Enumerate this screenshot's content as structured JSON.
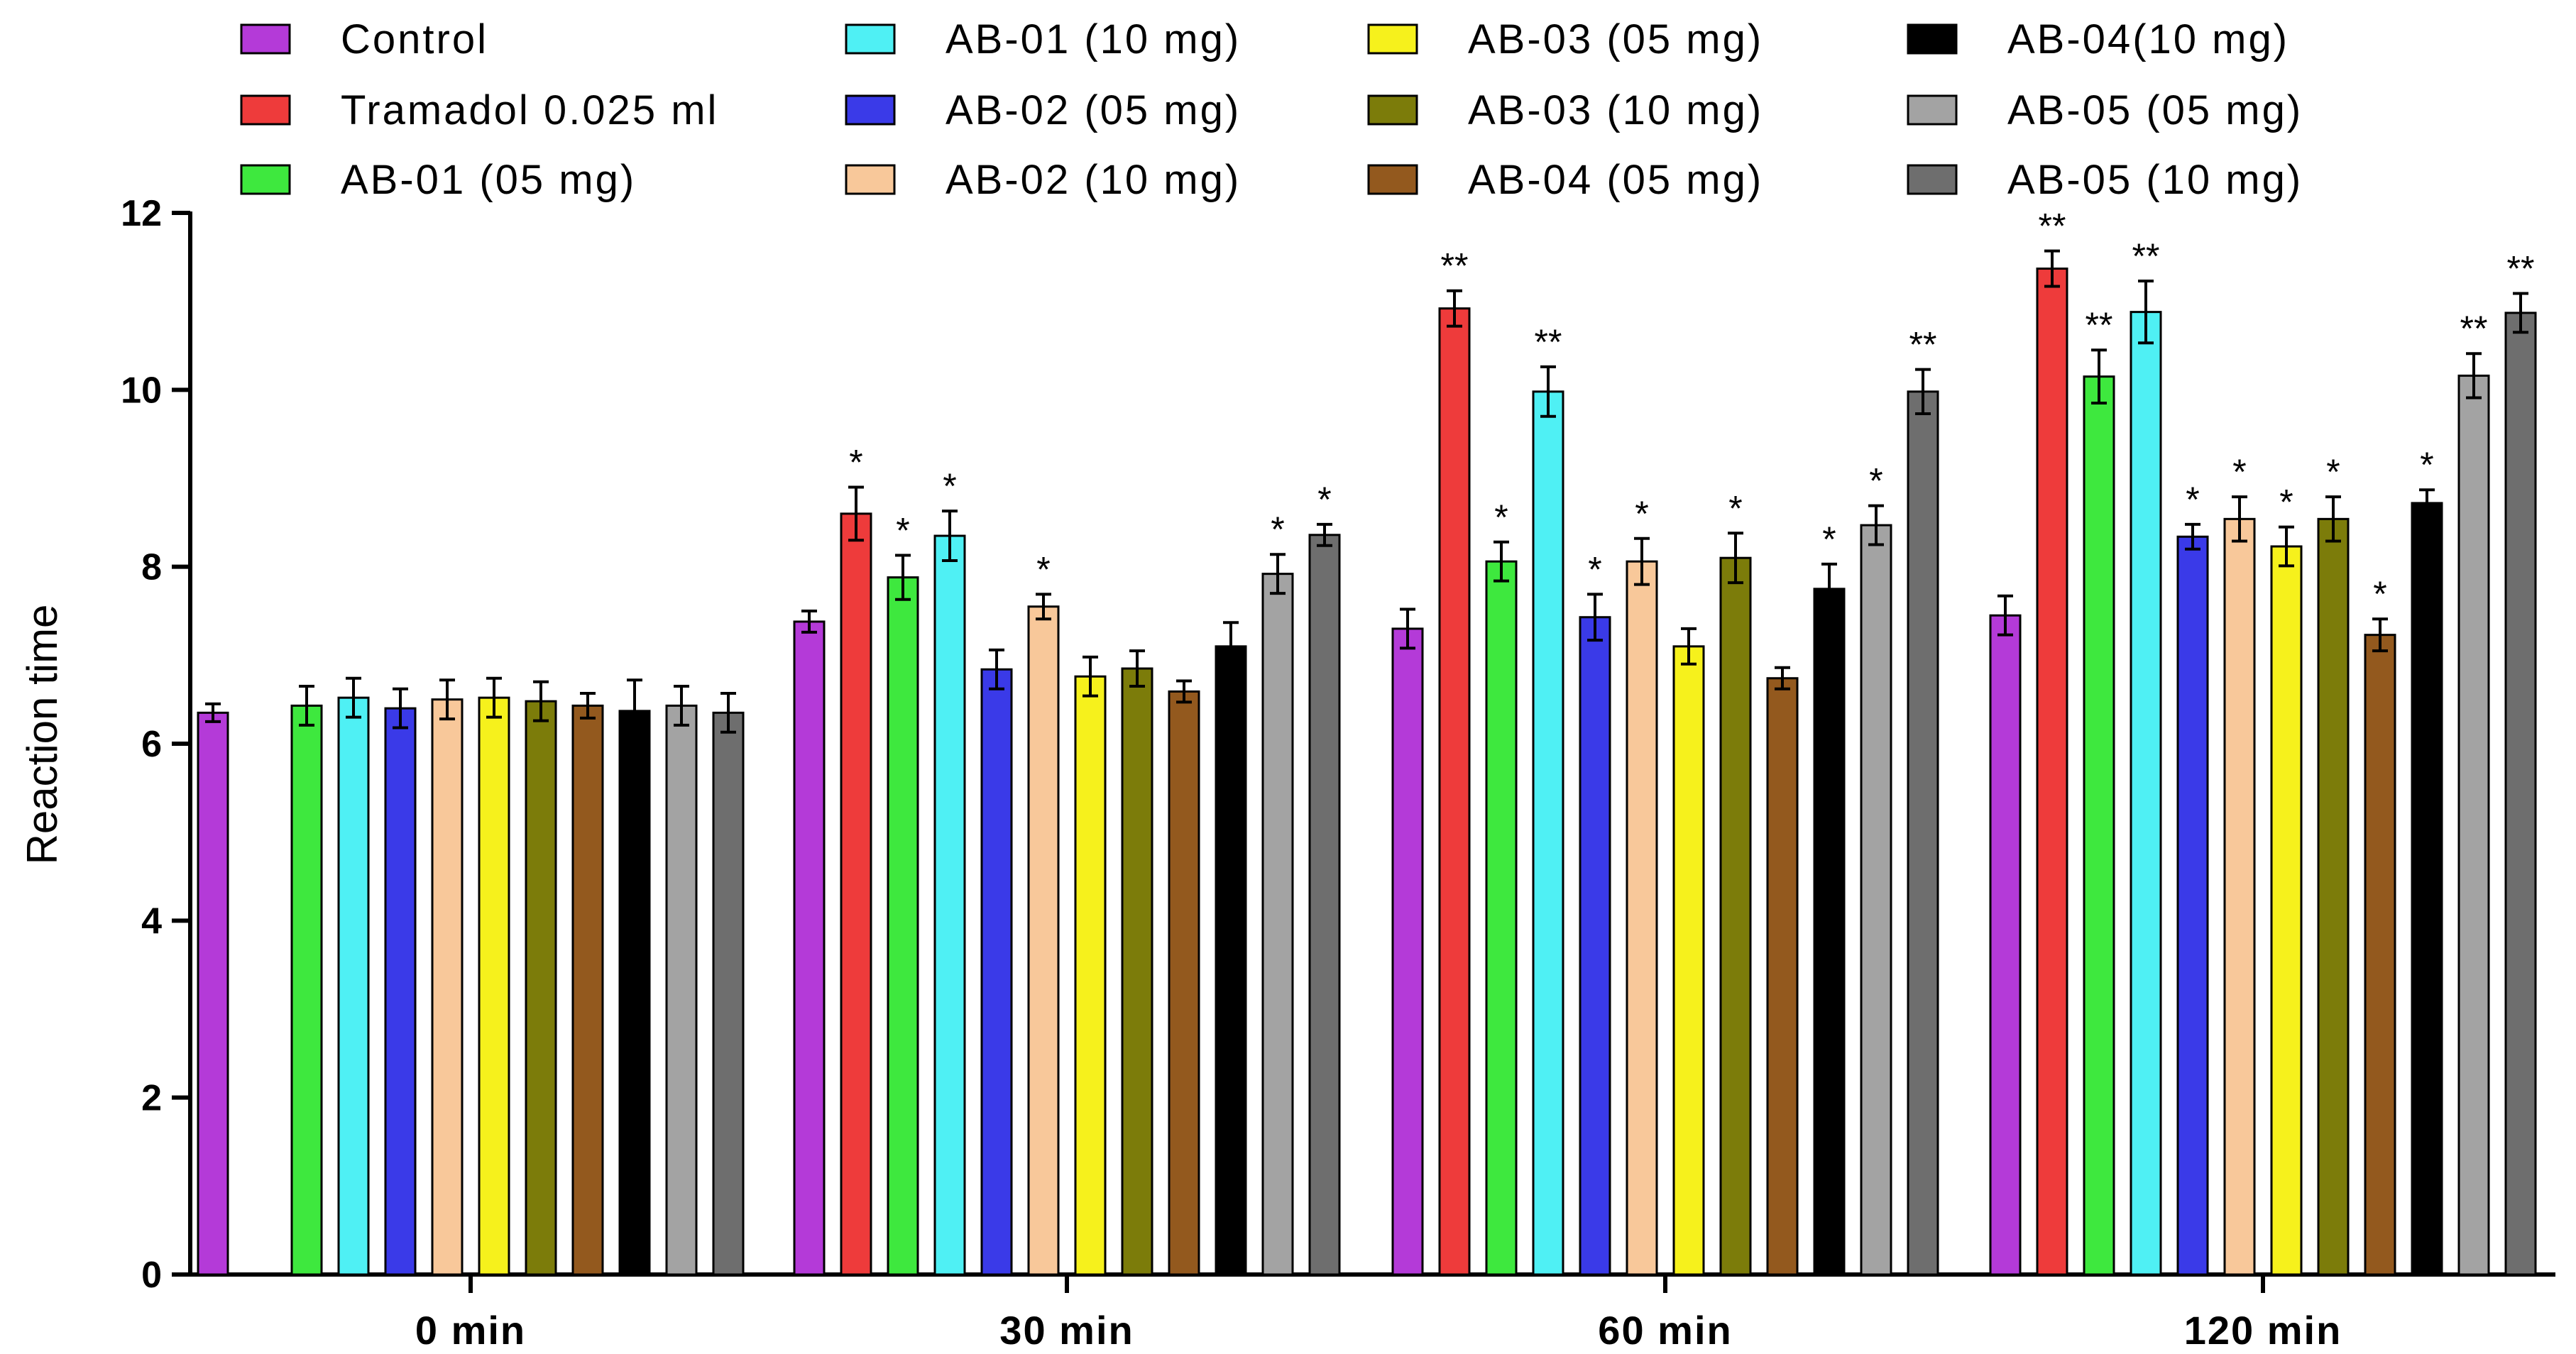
{
  "chart_data": {
    "type": "bar",
    "title": "",
    "xlabel": "",
    "ylabel": "Reaction time",
    "ylim": [
      0,
      12
    ],
    "yticks": [
      "0",
      "2",
      "4",
      "6",
      "8",
      "10",
      "12"
    ],
    "categories": [
      "0 min",
      "30 min",
      "60 min",
      "120 min"
    ],
    "legend_position": "top",
    "series": [
      {
        "name": "Control",
        "color": "#b43ad8",
        "values": [
          6.35,
          7.38,
          7.3,
          7.45
        ],
        "errors": [
          0.1,
          0.12,
          0.22,
          0.22
        ],
        "sig": [
          "",
          "",
          "",
          ""
        ]
      },
      {
        "name": "Tramadol 0.025 ml",
        "color": "#ee3b3b",
        "values": [
          null,
          8.6,
          10.92,
          11.37
        ],
        "errors": [
          0,
          0.3,
          0.2,
          0.2
        ],
        "sig": [
          "",
          "*",
          "**",
          "**"
        ]
      },
      {
        "name": "AB-01 (05 mg)",
        "color": "#3ee83e",
        "values": [
          6.43,
          7.88,
          8.06,
          10.15
        ],
        "errors": [
          0.22,
          0.25,
          0.22,
          0.3
        ],
        "sig": [
          "",
          "*",
          "*",
          "**"
        ]
      },
      {
        "name": "AB-01 (10 mg)",
        "color": "#4ff0f4",
        "values": [
          6.52,
          8.35,
          9.98,
          10.88
        ],
        "errors": [
          0.22,
          0.28,
          0.28,
          0.35
        ],
        "sig": [
          "",
          "*",
          "**",
          "**"
        ]
      },
      {
        "name": "AB-02 (05 mg)",
        "color": "#3a3ae8",
        "values": [
          6.4,
          6.84,
          7.43,
          8.34
        ],
        "errors": [
          0.22,
          0.22,
          0.26,
          0.14
        ],
        "sig": [
          "",
          "",
          "*",
          "*"
        ]
      },
      {
        "name": "AB-02 (10 mg)",
        "color": "#f8c89a",
        "values": [
          6.5,
          7.55,
          8.06,
          8.54
        ],
        "errors": [
          0.22,
          0.14,
          0.26,
          0.25
        ],
        "sig": [
          "",
          "*",
          "*",
          "*"
        ]
      },
      {
        "name": "AB-03 (05 mg)",
        "color": "#f6f11c",
        "values": [
          6.52,
          6.76,
          7.1,
          8.23
        ],
        "errors": [
          0.22,
          0.22,
          0.2,
          0.22
        ],
        "sig": [
          "",
          "",
          "",
          "*"
        ]
      },
      {
        "name": "AB-03 (10 mg)",
        "color": "#7c7c0a",
        "values": [
          6.48,
          6.85,
          8.1,
          8.54
        ],
        "errors": [
          0.22,
          0.2,
          0.28,
          0.25
        ],
        "sig": [
          "",
          "",
          "*",
          "*"
        ]
      },
      {
        "name": "AB-04 (05 mg)",
        "color": "#93591e",
        "values": [
          6.43,
          6.59,
          6.74,
          7.23
        ],
        "errors": [
          0.14,
          0.12,
          0.12,
          0.18
        ],
        "sig": [
          "",
          "",
          "",
          "*"
        ]
      },
      {
        "name": "AB-04(10 mg)",
        "color": "#000000",
        "values": [
          6.37,
          7.1,
          7.75,
          8.72
        ],
        "errors": [
          0.35,
          0.27,
          0.28,
          0.15
        ],
        "sig": [
          "",
          "",
          "*",
          "*"
        ]
      },
      {
        "name": "AB-05 (05 mg)",
        "color": "#a3a3a3",
        "values": [
          6.43,
          7.92,
          8.47,
          10.16
        ],
        "errors": [
          0.22,
          0.22,
          0.22,
          0.25
        ],
        "sig": [
          "",
          "*",
          "*",
          "**"
        ]
      },
      {
        "name": "AB-05 (10 mg)",
        "color": "#6e6e6e",
        "values": [
          6.35,
          8.36,
          9.98,
          10.87
        ],
        "errors": [
          0.22,
          0.12,
          0.25,
          0.22
        ],
        "sig": [
          "",
          "*",
          "**",
          "**"
        ]
      }
    ]
  }
}
